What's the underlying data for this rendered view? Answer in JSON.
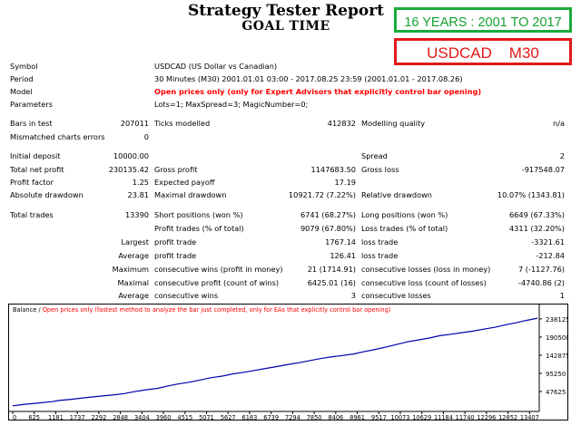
{
  "header": {
    "title": "Strategy Tester Report",
    "subtitle": "GOAL TIME",
    "badge_years": "16 YEARS : 2001 TO 2017",
    "badge_pair": "USDCAD    M30"
  },
  "colors": {
    "badge_green": "#1aab3b",
    "badge_red": "#e01919",
    "balance_line": "#0000aa",
    "warning_red": "#ff0000"
  },
  "info": {
    "symbol_label": "Symbol",
    "symbol_value": "USDCAD (US Dollar vs Canadian)",
    "period_label": "Period",
    "period_value": "30 Minutes (M30) 2001.01.01 03:00 - 2017.08.25 23:59 (2001.01.01 - 2017.08.26)",
    "model_label": "Model",
    "model_value": "Open prices only (only for Expert Advisors that explicitly control bar opening)",
    "params_label": "Parameters",
    "params_value": "Lots=1; MaxSpread=3; MagicNumber=0;"
  },
  "stats": {
    "bars_label": "Bars in test",
    "bars_value": "207011",
    "ticks_label": "Ticks modelled",
    "ticks_value": "412832",
    "quality_label": "Modelling quality",
    "quality_value": "n/a",
    "mismatch_label": "Mismatched charts errors",
    "mismatch_value": "0",
    "deposit_label": "Initial deposit",
    "deposit_value": "10000.00",
    "spread_label": "Spread",
    "spread_value": "2",
    "netprofit_label": "Total net profit",
    "netprofit_value": "230135.42",
    "grossprofit_label": "Gross profit",
    "grossprofit_value": "1147683.50",
    "grossloss_label": "Gross loss",
    "grossloss_value": "-917548.07",
    "pf_label": "Profit factor",
    "pf_value": "1.25",
    "payoff_label": "Expected payoff",
    "payoff_value": "17.19",
    "absdd_label": "Absolute drawdown",
    "absdd_value": "23.81",
    "maxdd_label": "Maximal drawdown",
    "maxdd_value": "10921.72 (7.22%)",
    "reldd_label": "Relative drawdown",
    "reldd_value": "10.07% (1343.81)",
    "trades_label": "Total trades",
    "trades_value": "13390",
    "short_label": "Short positions (won %)",
    "short_value": "6741 (68.27%)",
    "long_label": "Long positions (won %)",
    "long_value": "6649 (67.33%)",
    "pt_label": "Profit trades (% of total)",
    "pt_value": "9079 (67.80%)",
    "lt_label": "Loss trades (% of total)",
    "lt_value": "4311 (32.20%)",
    "largest_label": "Largest",
    "lg_pt_label": "profit trade",
    "lg_pt_value": "1767.14",
    "lg_lt_label": "loss trade",
    "lg_lt_value": "-3321.61",
    "average_label": "Average",
    "av_pt_label": "profit trade",
    "av_pt_value": "126.41",
    "av_lt_label": "loss trade",
    "av_lt_value": "-212.84",
    "maximum_label": "Maximum",
    "mx_cw_label": "consecutive wins (profit in money)",
    "mx_cw_value": "21 (1714.91)",
    "mx_cl_label": "consecutive losses (loss in money)",
    "mx_cl_value": "7 (-1127.76)",
    "maximal_label": "Maximal",
    "ml_cp_label": "consecutive profit (count of wins)",
    "ml_cp_value": "6425.01 (16)",
    "ml_cl_label": "consecutive loss (count of losses)",
    "ml_cl_value": "-4740.86 (2)",
    "average2_label": "Average",
    "av_cw_label": "consecutive wins",
    "av_cw_value": "3",
    "av_cl_label": "consecutive losses",
    "av_cl_value": "1"
  },
  "chart_data": {
    "type": "line",
    "legend_prefix": "Balance / ",
    "legend_text": "Open prices only (fastest method to analyze the bar just completed, only for EAs that explicitly control bar opening)",
    "x_ticks": [
      "0",
      "625",
      "1181",
      "1737",
      "2292",
      "2848",
      "3404",
      "3960",
      "4515",
      "5071",
      "5627",
      "6183",
      "6739",
      "7294",
      "7850",
      "8406",
      "8961",
      "9517",
      "10073",
      "10629",
      "11184",
      "11740",
      "12296",
      "12852",
      "13407"
    ],
    "y_ticks": [
      "238125",
      "190500",
      "142875",
      "95250",
      "47625"
    ],
    "ylim": [
      0,
      245000
    ],
    "xlim": [
      0,
      13390
    ],
    "series": [
      {
        "x": [
          0,
          300,
          625,
          1000,
          1181,
          1500,
          1737,
          2000,
          2292,
          2600,
          2848,
          3100,
          3404,
          3700,
          3960,
          4200,
          4515,
          4800,
          5071,
          5350,
          5627,
          5900,
          6183,
          6450,
          6739,
          7000,
          7294,
          7550,
          7850,
          8100,
          8406,
          8700,
          8961,
          9250,
          9517,
          9800,
          10073,
          10350,
          10629,
          10900,
          11184,
          11450,
          11740,
          12000,
          12296,
          12550,
          12852,
          13100,
          13390
        ],
        "y": [
          10000,
          14000,
          17000,
          21000,
          24000,
          27000,
          30000,
          33000,
          36000,
          39000,
          42000,
          47000,
          52000,
          56000,
          62000,
          67000,
          72000,
          78000,
          84000,
          88000,
          94000,
          98000,
          103000,
          108000,
          113000,
          118000,
          123000,
          128000,
          134000,
          138000,
          142000,
          146000,
          152000,
          158000,
          164000,
          171000,
          178000,
          183000,
          188000,
          194000,
          198000,
          202000,
          206000,
          211000,
          216000,
          222000,
          228000,
          234000,
          240000
        ]
      }
    ]
  }
}
